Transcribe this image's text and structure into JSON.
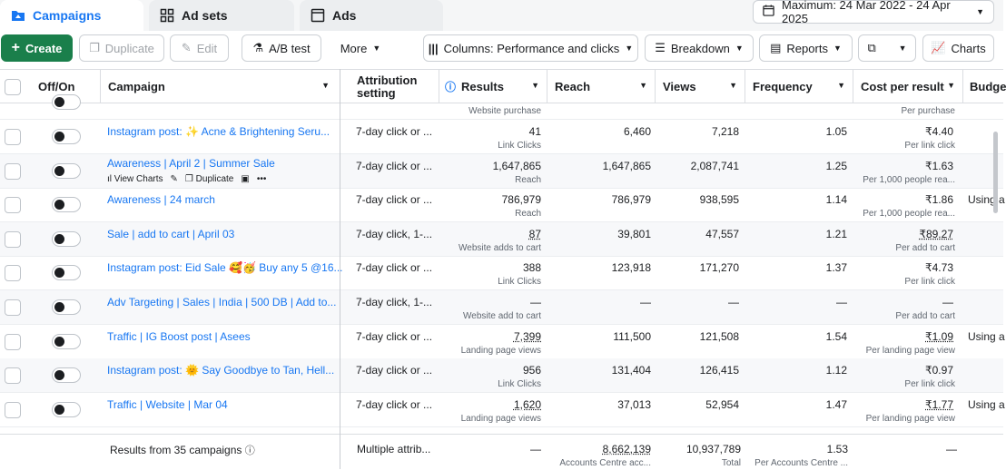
{
  "tabs": [
    {
      "label": "Campaigns",
      "icon": "folder-icon"
    },
    {
      "label": "Ad sets",
      "icon": "grid-icon"
    },
    {
      "label": "Ads",
      "icon": "window-icon"
    }
  ],
  "date_range": "Maximum: 24 Mar 2022 - 24 Apr 2025",
  "toolbar": {
    "create": "Create",
    "duplicate": "Duplicate",
    "edit": "Edit",
    "ab_test": "A/B test",
    "more": "More",
    "columns": "Columns: Performance and clicks",
    "breakdown": "Breakdown",
    "reports": "Reports",
    "charts": "Charts"
  },
  "columns": {
    "offon": "Off/On",
    "campaign": "Campaign",
    "attribution": "Attribution setting",
    "results": "Results",
    "reach": "Reach",
    "views": "Views",
    "frequency": "Frequency",
    "cpr": "Cost per result",
    "budget": "Budge"
  },
  "top_partial": {
    "results_sub": "Website purchase",
    "cpr_sub": "Per purchase"
  },
  "rows": [
    {
      "campaign": "Instagram post: ✨ Acne & Brightening Seru...",
      "attribution": "7-day click or ...",
      "results": "41",
      "results_sub": "Link Clicks",
      "reach": "6,460",
      "views": "7,218",
      "frequency": "1.05",
      "cpr": "₹4.40",
      "cpr_sub": "Per link click",
      "budget": ""
    },
    {
      "campaign": "Awareness | April 2 | Summer Sale",
      "attribution": "7-day click or ...",
      "results": "1,647,865",
      "results_sub": "Reach",
      "reach": "1,647,865",
      "views": "2,087,741",
      "frequency": "1.25",
      "cpr": "₹1.63",
      "cpr_sub": "Per 1,000 people rea...",
      "budget": "",
      "actions": {
        "view_charts": "View Charts",
        "duplicate": "Duplicate"
      }
    },
    {
      "campaign": "Awareness | 24 march",
      "attribution": "7-day click or ...",
      "results": "786,979",
      "results_sub": "Reach",
      "reach": "786,979",
      "views": "938,595",
      "frequency": "1.14",
      "cpr": "₹1.86",
      "cpr_sub": "Per 1,000 people rea...",
      "budget": "Using a"
    },
    {
      "campaign": "Sale | add to cart | April 03",
      "attribution": "7-day click, 1-...",
      "results": "87",
      "results_sub": "Website adds to cart",
      "reach": "39,801",
      "views": "47,557",
      "frequency": "1.21",
      "cpr": "₹89.27",
      "cpr_sub": "Per add to cart",
      "budget": ""
    },
    {
      "campaign": "Instagram post: Eid Sale 🥰🥳 Buy any 5 @16...",
      "attribution": "7-day click or ...",
      "results": "388",
      "results_sub": "Link Clicks",
      "reach": "123,918",
      "views": "171,270",
      "frequency": "1.37",
      "cpr": "₹4.73",
      "cpr_sub": "Per link click",
      "budget": ""
    },
    {
      "campaign": "Adv Targeting | Sales | India | 500 DB | Add to...",
      "attribution": "7-day click, 1-...",
      "results": "—",
      "results_sub": "Website add to cart",
      "reach": "—",
      "views": "—",
      "frequency": "—",
      "cpr": "—",
      "cpr_sub": "Per add to cart",
      "budget": ""
    },
    {
      "campaign": "Traffic | IG Boost post | Asees",
      "attribution": "7-day click or ...",
      "results": "7,399",
      "results_sub": "Landing page views",
      "reach": "111,500",
      "views": "121,508",
      "frequency": "1.54",
      "cpr": "₹1.09",
      "cpr_sub": "Per landing page view",
      "budget": "Using a"
    },
    {
      "campaign": "Instagram post: 🌞 Say Goodbye to Tan, Hell...",
      "attribution": "7-day click or ...",
      "results": "956",
      "results_sub": "Link Clicks",
      "reach": "131,404",
      "views": "126,415",
      "frequency": "1.12",
      "cpr": "₹0.97",
      "cpr_sub": "Per link click",
      "budget": ""
    },
    {
      "campaign": "Traffic | Website | Mar 04",
      "attribution": "7-day click or ...",
      "results": "1,620",
      "results_sub": "Landing page views",
      "reach": "37,013",
      "views": "52,954",
      "frequency": "1.47",
      "cpr": "₹1.77",
      "cpr_sub": "Per landing page view",
      "budget": "Using a"
    }
  ],
  "footer": {
    "label": "Results from 35 campaigns",
    "attribution": "Multiple attrib...",
    "results": "—",
    "reach": "8,662,139",
    "reach_sub": "Accounts Centre acc...",
    "views": "10,937,789",
    "views_sub": "Total",
    "frequency": "1.53",
    "frequency_sub": "Per Accounts Centre ...",
    "cpr": "—"
  }
}
